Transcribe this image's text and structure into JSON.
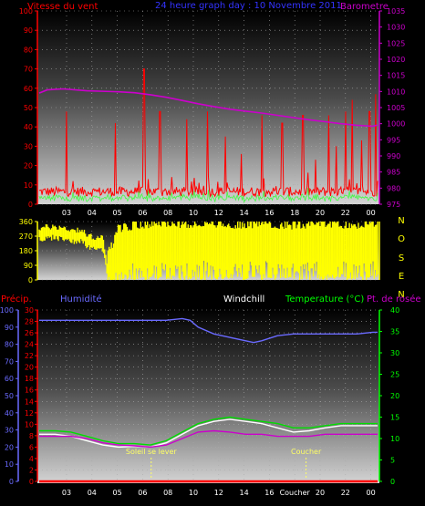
{
  "chart_data": [
    {
      "type": "line",
      "title": "24 heure graph day : 10 Novembre 2011",
      "left_axis_label": "Vitesse du vent",
      "right_axis_label": "Barometre",
      "x_ticks": [
        "03",
        "04",
        "05",
        "06",
        "08",
        "10",
        "12",
        "14",
        "16",
        "18",
        "20",
        "22",
        "00"
      ],
      "y_left_ticks": [
        0,
        10,
        20,
        30,
        40,
        50,
        60,
        70,
        80,
        90,
        100
      ],
      "y_left_range": [
        0,
        100
      ],
      "y_right_ticks": [
        975,
        980,
        985,
        990,
        995,
        1000,
        1005,
        1010,
        1015,
        1020,
        1025,
        1030,
        1035
      ],
      "y_right_range": [
        975,
        1035
      ],
      "series": [
        {
          "name": "Barometre",
          "axis": "right",
          "color": "#cc00cc",
          "points": [
            [
              0,
              1009.5
            ],
            [
              0.5,
              1010.5
            ],
            [
              1.5,
              1010.8
            ],
            [
              3,
              1010.2
            ],
            [
              5,
              1009.9
            ],
            [
              6,
              1009.6
            ],
            [
              7,
              1009.0
            ],
            [
              8,
              1008.2
            ],
            [
              9,
              1007.2
            ],
            [
              10,
              1006.2
            ],
            [
              11,
              1005.3
            ],
            [
              12,
              1004.5
            ],
            [
              13,
              1003.9
            ],
            [
              14,
              1003.3
            ],
            [
              15,
              1002.6
            ],
            [
              16,
              1001.9
            ],
            [
              17,
              1001.2
            ],
            [
              18,
              1000.6
            ],
            [
              19,
              1000.0
            ],
            [
              20,
              999.5
            ],
            [
              21,
              999.2
            ],
            [
              21.3,
              999.6
            ]
          ]
        }
      ],
      "wind_gust_peaks": [
        [
          1.7,
          48
        ],
        [
          4.8,
          42
        ],
        [
          6.6,
          70
        ],
        [
          7.6,
          48
        ],
        [
          9.3,
          44
        ],
        [
          10.6,
          48
        ],
        [
          11.7,
          35
        ],
        [
          12.7,
          26
        ],
        [
          14.0,
          46
        ],
        [
          15.3,
          42
        ],
        [
          16.6,
          46
        ],
        [
          17.4,
          23
        ],
        [
          18.2,
          46
        ],
        [
          18.7,
          30
        ],
        [
          19.3,
          48
        ],
        [
          19.7,
          54
        ],
        [
          20.3,
          33
        ],
        [
          20.8,
          48
        ],
        [
          21.2,
          57
        ]
      ]
    },
    {
      "type": "scatter",
      "title": "",
      "y_ticks": [
        0,
        90,
        180,
        270,
        360
      ],
      "y_range": [
        0,
        360
      ],
      "compass_labels": [
        "N",
        "O",
        "S",
        "E",
        "N"
      ],
      "bar_color": "#ffff00",
      "direction_profile": [
        [
          0,
          300
        ],
        [
          1,
          310
        ],
        [
          2,
          290
        ],
        [
          2.7,
          290
        ],
        [
          3,
          250
        ],
        [
          4,
          240
        ],
        [
          4.3,
          60
        ],
        [
          5,
          230
        ],
        [
          6,
          250
        ],
        [
          8,
          260
        ],
        [
          10,
          260
        ],
        [
          12,
          250
        ],
        [
          14,
          260
        ],
        [
          16,
          250
        ],
        [
          18,
          260
        ],
        [
          20,
          250
        ],
        [
          21.3,
          270
        ]
      ]
    },
    {
      "type": "line",
      "title": "",
      "labels": {
        "precip": "Précip.",
        "humidity": "Humidité",
        "windchill": "Windchill",
        "temperature": "Temperature (°C)",
        "dewpoint": "Pt. de rosée"
      },
      "y_precip_ticks": [
        0,
        2,
        4,
        6,
        8,
        10,
        12,
        14,
        16,
        18,
        20,
        22,
        24,
        26,
        28,
        30
      ],
      "y_precip_range": [
        0,
        30
      ],
      "y_humidity_ticks": [
        0,
        10,
        20,
        30,
        40,
        50,
        60,
        70,
        80,
        90,
        100
      ],
      "y_humidity_range": [
        0,
        100
      ],
      "y_temp_ticks": [
        0,
        5,
        10,
        15,
        20,
        25,
        30,
        35,
        40
      ],
      "y_temp_range": [
        0,
        40
      ],
      "x_ticks": [
        "03",
        "04",
        "05",
        "06",
        "08",
        "10",
        "12",
        "14",
        "16",
        "Coucher",
        "20",
        "22",
        "00"
      ],
      "annotations": [
        {
          "text": "Soleil se lever",
          "x": 7.05
        },
        {
          "text": "Coucher",
          "x": 16.8
        }
      ],
      "series": [
        {
          "name": "Humidité",
          "color": "#6a6aff",
          "points": [
            [
              0,
              94
            ],
            [
              3,
              94
            ],
            [
              5,
              94
            ],
            [
              6,
              94
            ],
            [
              7,
              94
            ],
            [
              8,
              94
            ],
            [
              9,
              95
            ],
            [
              9.5,
              94
            ],
            [
              10,
              90
            ],
            [
              11,
              86
            ],
            [
              12,
              84
            ],
            [
              13,
              82
            ],
            [
              13.5,
              81
            ],
            [
              14,
              82
            ],
            [
              15,
              85
            ],
            [
              16,
              86
            ],
            [
              17,
              86
            ],
            [
              18,
              86
            ],
            [
              19,
              86
            ],
            [
              20,
              86
            ],
            [
              21,
              87
            ],
            [
              21.3,
              87
            ]
          ]
        },
        {
          "name": "Temperature",
          "color": "#00dd00",
          "points": [
            [
              0,
              11.8
            ],
            [
              1,
              11.8
            ],
            [
              2,
              11.5
            ],
            [
              3,
              10.5
            ],
            [
              4,
              9.5
            ],
            [
              5,
              8.8
            ],
            [
              6,
              8.8
            ],
            [
              7,
              8.5
            ],
            [
              8,
              9.5
            ],
            [
              9,
              11.5
            ],
            [
              10,
              13.5
            ],
            [
              11,
              14.5
            ],
            [
              12,
              15
            ],
            [
              13,
              14.5
            ],
            [
              14,
              14
            ],
            [
              15,
              13.5
            ],
            [
              16,
              12.5
            ],
            [
              17,
              12.5
            ],
            [
              18,
              13
            ],
            [
              19,
              13.5
            ],
            [
              20,
              13.5
            ],
            [
              21,
              13.5
            ],
            [
              21.3,
              13.5
            ]
          ]
        },
        {
          "name": "Windchill",
          "color": "#ffffff",
          "points": [
            [
              0,
              11
            ],
            [
              1,
              11
            ],
            [
              2,
              10.5
            ],
            [
              3,
              9.5
            ],
            [
              4,
              8.5
            ],
            [
              5,
              8
            ],
            [
              6,
              8.2
            ],
            [
              7,
              8
            ],
            [
              8,
              9
            ],
            [
              9,
              11
            ],
            [
              10,
              13
            ],
            [
              11,
              14
            ],
            [
              12,
              14.5
            ],
            [
              13,
              14
            ],
            [
              14,
              13.5
            ],
            [
              15,
              12.5
            ],
            [
              16,
              11.5
            ],
            [
              17,
              11.8
            ],
            [
              18,
              12.5
            ],
            [
              19,
              13
            ],
            [
              20,
              13
            ],
            [
              21,
              13
            ],
            [
              21.3,
              13
            ]
          ]
        },
        {
          "name": "Pt. de rosée",
          "color": "#cc00cc",
          "points": [
            [
              0,
              10.5
            ],
            [
              2,
              10.5
            ],
            [
              3,
              10
            ],
            [
              4,
              9
            ],
            [
              5,
              8.5
            ],
            [
              6,
              8.3
            ],
            [
              7,
              8
            ],
            [
              8,
              8.5
            ],
            [
              9,
              10
            ],
            [
              10,
              11.5
            ],
            [
              11,
              11.8
            ],
            [
              12,
              11.5
            ],
            [
              13,
              11
            ],
            [
              14,
              11
            ],
            [
              15,
              10.5
            ],
            [
              16,
              10.5
            ],
            [
              17,
              10.5
            ],
            [
              18,
              11
            ],
            [
              19,
              11
            ],
            [
              20,
              11
            ],
            [
              21.3,
              11
            ]
          ]
        },
        {
          "name": "Précip.",
          "color": "#ff0000",
          "points": [
            [
              0,
              0
            ],
            [
              21.3,
              0
            ]
          ]
        }
      ]
    }
  ],
  "colors": {
    "wind_label": "#ff0000",
    "title": "#3333ff",
    "barometer": "#cc00cc",
    "precip": "#ff0000",
    "humidity": "#6a6aff",
    "windchill": "#ffffff",
    "temperature": "#00ff00",
    "dewpoint": "#cc00cc",
    "annotation": "#ffff66"
  }
}
